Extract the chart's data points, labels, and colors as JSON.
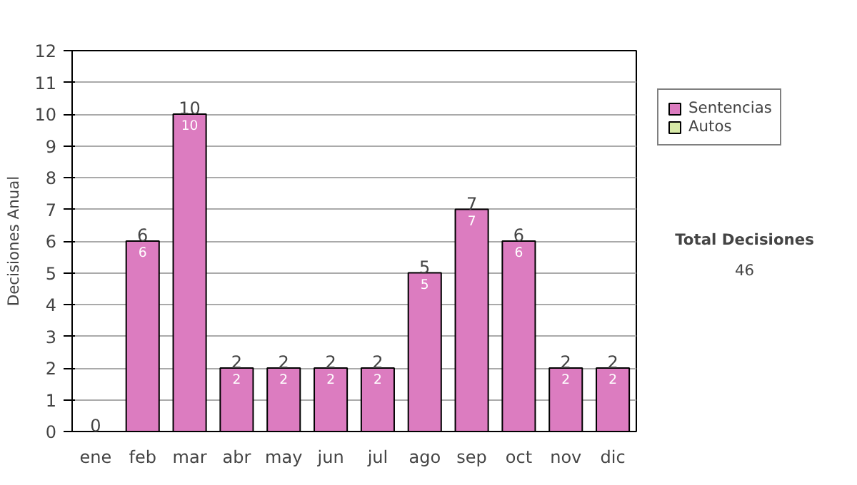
{
  "chart_data": {
    "type": "bar",
    "ylabel": "Decisiones Anual",
    "categories": [
      "ene",
      "feb",
      "mar",
      "abr",
      "may",
      "jun",
      "jul",
      "ago",
      "sep",
      "oct",
      "nov",
      "dic"
    ],
    "stacked": true,
    "series": [
      {
        "name": "Sentencias",
        "color": "#dc7cc0",
        "values": [
          0,
          6,
          10,
          2,
          2,
          2,
          2,
          5,
          7,
          6,
          2,
          2
        ],
        "value_labels": [
          null,
          "6",
          "10",
          "2",
          "2",
          "2",
          "2",
          "5",
          "7",
          "6",
          "2",
          "2"
        ]
      },
      {
        "name": "Autos",
        "color": "#d8eaa8",
        "values": [
          0,
          0,
          0,
          0,
          0,
          0,
          0,
          0,
          0,
          0,
          0,
          0
        ]
      }
    ],
    "totals": [
      "0",
      "6",
      "10",
      "2",
      "2",
      "2",
      "2",
      "5",
      "7",
      "6",
      "2",
      "2"
    ],
    "ylim": [
      0,
      12
    ],
    "yticks": [
      0,
      1,
      2,
      3,
      4,
      5,
      6,
      7,
      8,
      9,
      10,
      11,
      12
    ],
    "grid": "y",
    "legend": "right",
    "annotations": [
      "Total Decisiones",
      "46"
    ]
  }
}
